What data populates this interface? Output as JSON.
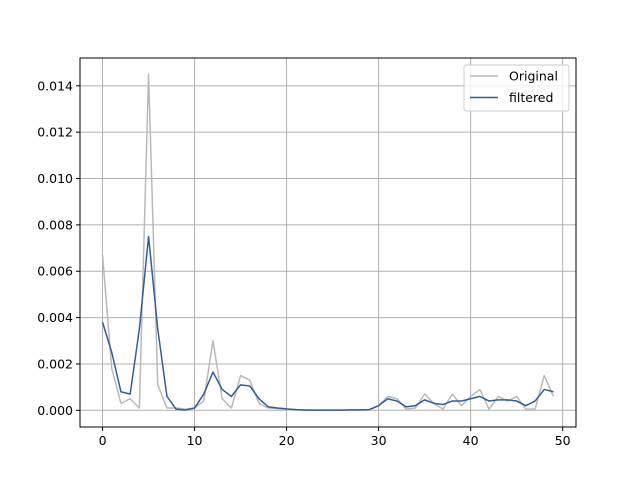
{
  "chart_data": {
    "type": "line",
    "title": "",
    "xlabel": "",
    "ylabel": "",
    "xlim": [
      -2.45,
      51.45
    ],
    "ylim": [
      -0.00072,
      0.0152
    ],
    "xticks": [
      0,
      10,
      20,
      30,
      40,
      50
    ],
    "xtick_labels": [
      "0",
      "10",
      "20",
      "30",
      "40",
      "50"
    ],
    "yticks": [
      0.0,
      0.002,
      0.004,
      0.006,
      0.008,
      0.01,
      0.012,
      0.014
    ],
    "ytick_labels": [
      "0.000",
      "0.002",
      "0.004",
      "0.006",
      "0.008",
      "0.010",
      "0.012",
      "0.014"
    ],
    "grid": true,
    "legend_position": "top-right",
    "x": [
      0,
      1,
      2,
      3,
      4,
      5,
      6,
      7,
      8,
      9,
      10,
      11,
      12,
      13,
      14,
      15,
      16,
      17,
      18,
      19,
      20,
      21,
      22,
      23,
      24,
      25,
      26,
      27,
      28,
      29,
      30,
      31,
      32,
      33,
      34,
      35,
      36,
      37,
      38,
      39,
      40,
      41,
      42,
      43,
      44,
      45,
      46,
      47,
      48,
      49
    ],
    "series": [
      {
        "name": "Original",
        "color": "#b9b9b9",
        "values": [
          0.0067,
          0.0018,
          0.0003,
          0.0005,
          0.0001,
          0.0145,
          0.0011,
          0.0001,
          0.0001,
          5e-05,
          0.0001,
          0.0004,
          0.003,
          0.0005,
          0.0001,
          0.0015,
          0.0013,
          0.0003,
          0.0001,
          8e-05,
          5e-05,
          3e-05,
          2e-05,
          1e-05,
          1e-05,
          1e-05,
          1e-05,
          2e-05,
          2e-05,
          3e-05,
          0.0002,
          0.0006,
          0.0005,
          5e-05,
          0.0001,
          0.0007,
          0.0003,
          5e-05,
          0.0007,
          0.0002,
          0.0006,
          0.0009,
          5e-05,
          0.0006,
          0.0004,
          0.0006,
          5e-05,
          5e-05,
          0.0015,
          0.0006
        ]
      },
      {
        "name": "filtered",
        "color": "#2f5d9e",
        "values": [
          0.0038,
          0.0025,
          0.0008,
          0.0007,
          0.0035,
          0.0075,
          0.0035,
          0.0006,
          5e-05,
          1e-05,
          0.0001,
          0.0007,
          0.00165,
          0.0009,
          0.0006,
          0.0011,
          0.00105,
          0.0005,
          0.00015,
          0.0001,
          6e-05,
          3e-05,
          1e-05,
          1e-05,
          1e-05,
          1e-05,
          1e-05,
          2e-05,
          2e-05,
          3e-05,
          0.0002,
          0.0005,
          0.0004,
          0.00015,
          0.0002,
          0.00045,
          0.0003,
          0.00025,
          0.0004,
          0.0004,
          0.0005,
          0.0006,
          0.0004,
          0.00045,
          0.00045,
          0.0004,
          0.0002,
          0.0004,
          0.0009,
          0.0008
        ]
      }
    ]
  }
}
